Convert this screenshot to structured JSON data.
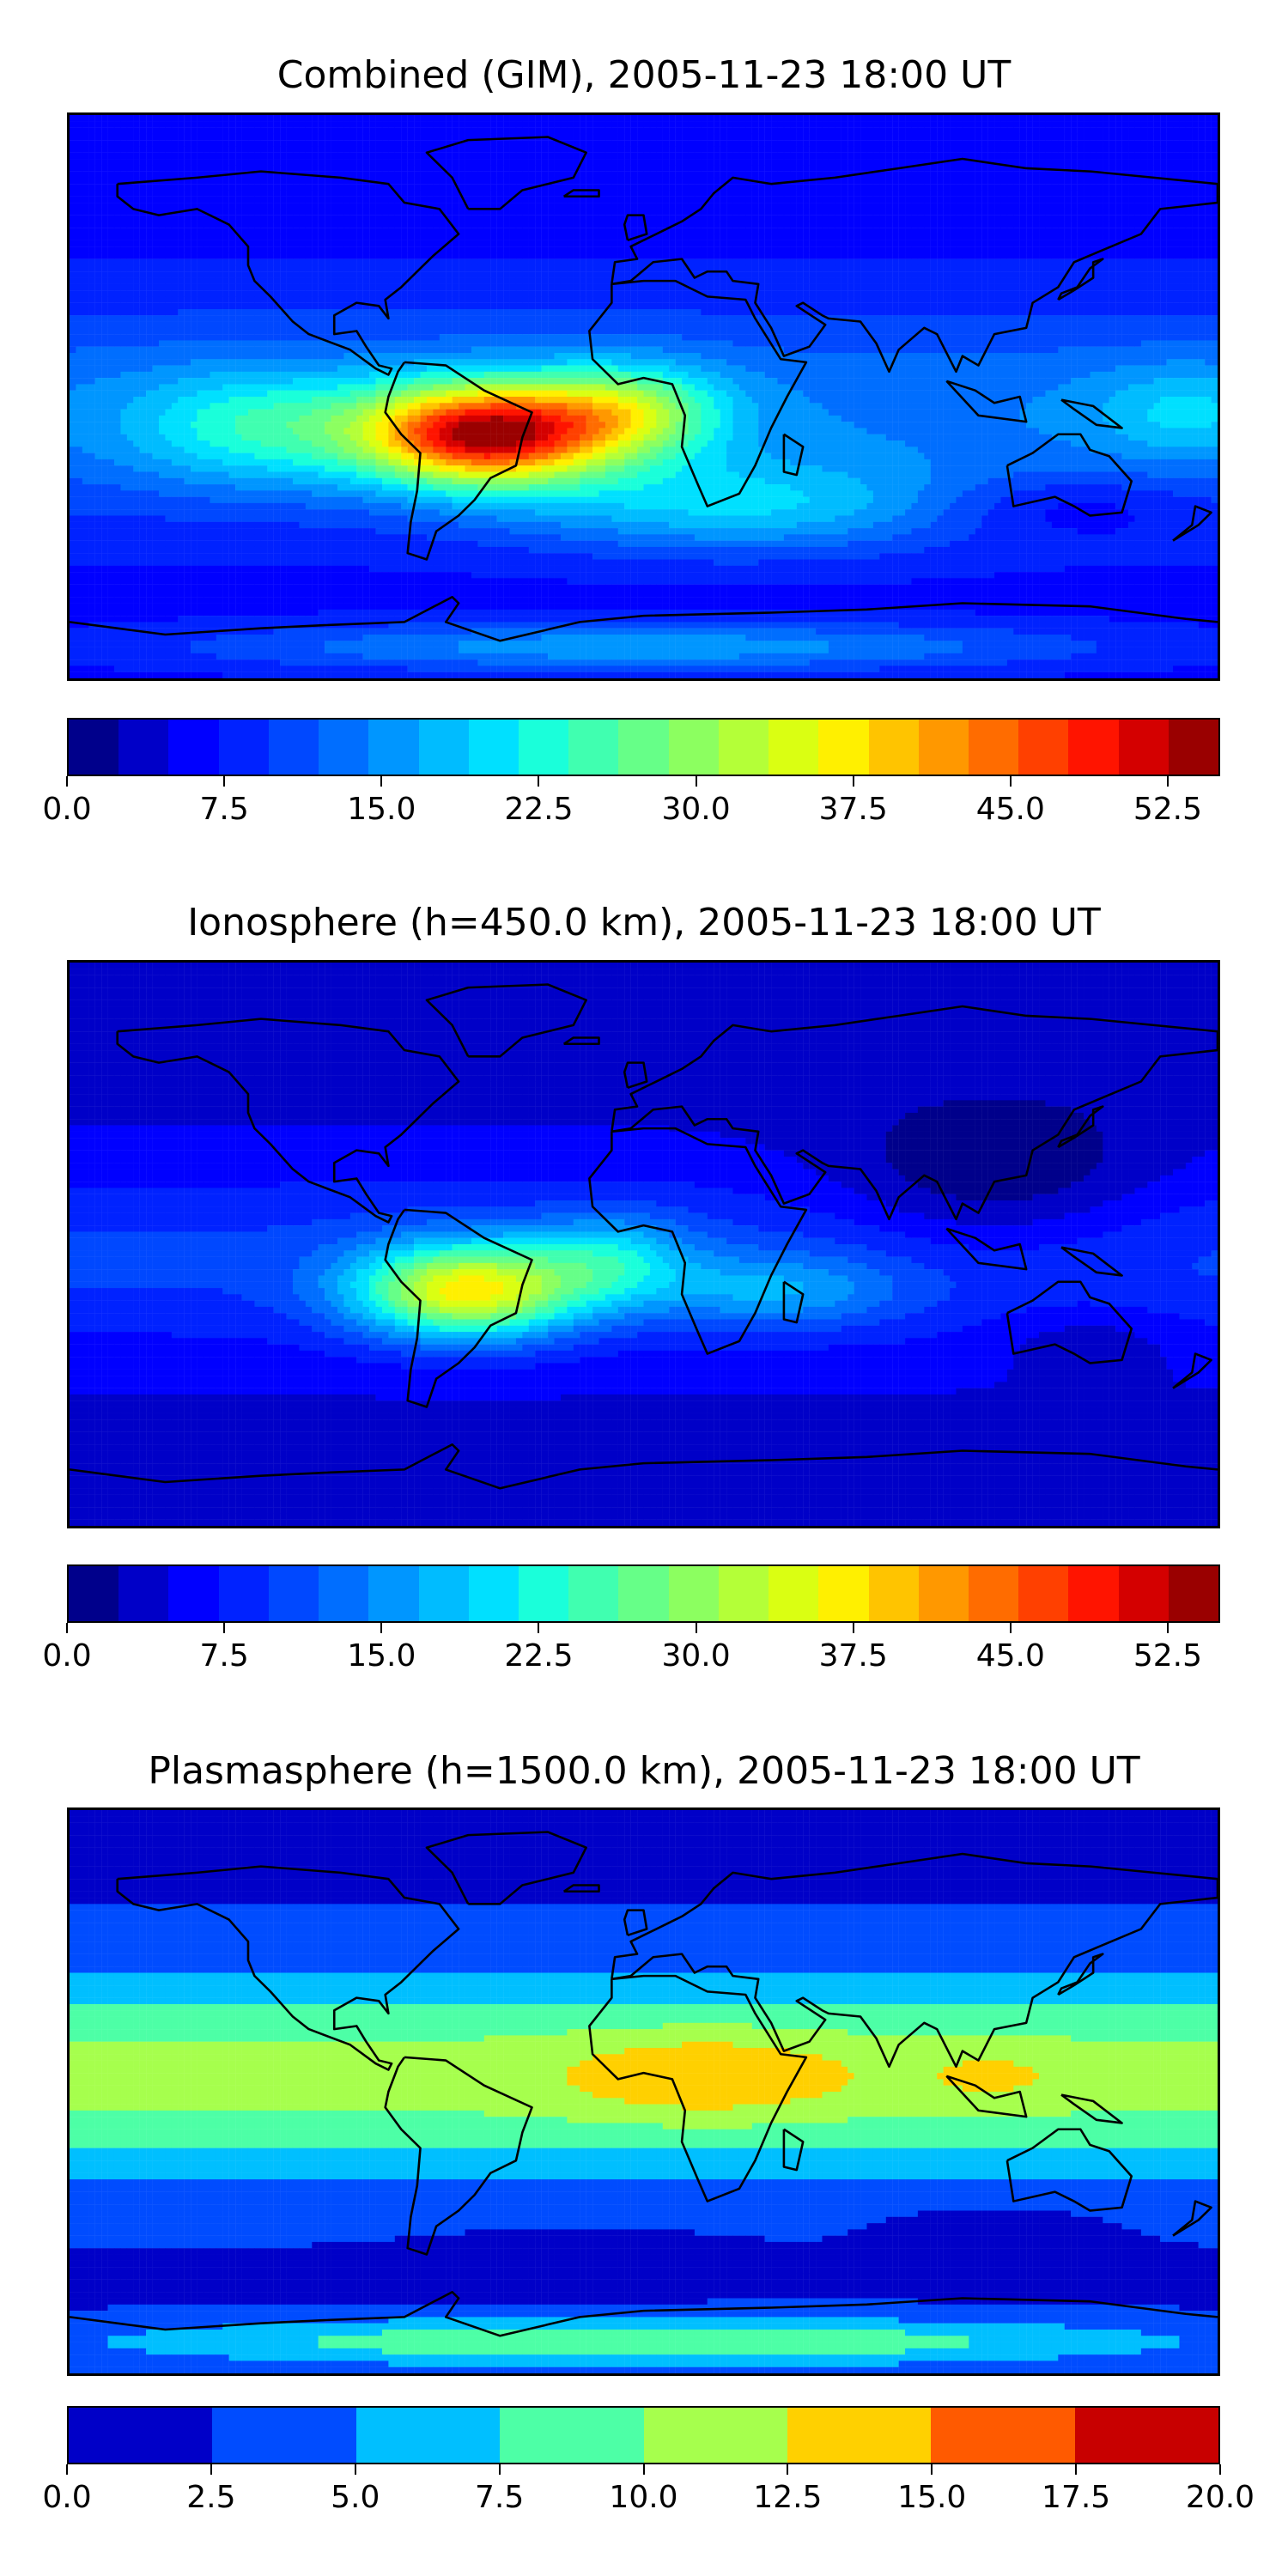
{
  "panels": [
    {
      "title": "Combined (GIM), 2005-11-23 18:00 UT",
      "field": "combined",
      "colorbar": {
        "min": 0,
        "max": 55,
        "colors": [
          "#00008b",
          "#0000c8",
          "#0000ff",
          "#0022ff",
          "#0048ff",
          "#006eff",
          "#0096ff",
          "#00bcff",
          "#00e0ff",
          "#1affda",
          "#40ffb0",
          "#66ff88",
          "#8cff60",
          "#b4ff38",
          "#daff12",
          "#fff000",
          "#ffc400",
          "#ff9800",
          "#ff6c00",
          "#ff4000",
          "#ff1400",
          "#d40000",
          "#9a0000"
        ],
        "ticks": [
          "0.0",
          "7.5",
          "15.0",
          "22.5",
          "30.0",
          "37.5",
          "45.0",
          "52.5"
        ],
        "tick_values": [
          0,
          7.5,
          15,
          22.5,
          30,
          37.5,
          45,
          52.5
        ]
      }
    },
    {
      "title": "Ionosphere  (h=450.0 km), 2005-11-23 18:00 UT",
      "field": "ionosphere",
      "colorbar": {
        "min": 0,
        "max": 55,
        "colors": [
          "#00008b",
          "#0000c8",
          "#0000ff",
          "#0022ff",
          "#0048ff",
          "#006eff",
          "#0096ff",
          "#00bcff",
          "#00e0ff",
          "#1affda",
          "#40ffb0",
          "#66ff88",
          "#8cff60",
          "#b4ff38",
          "#daff12",
          "#fff000",
          "#ffc400",
          "#ff9800",
          "#ff6c00",
          "#ff4000",
          "#ff1400",
          "#d40000",
          "#9a0000"
        ],
        "ticks": [
          "0.0",
          "7.5",
          "15.0",
          "22.5",
          "30.0",
          "37.5",
          "45.0",
          "52.5"
        ],
        "tick_values": [
          0,
          7.5,
          15,
          22.5,
          30,
          37.5,
          45,
          52.5
        ]
      }
    },
    {
      "title": "Plasmasphere (h=1500.0 km), 2005-11-23 18:00 UT",
      "field": "plasmasphere",
      "colorbar": {
        "min": 0,
        "max": 20,
        "colors": [
          "#0000c8",
          "#004cff",
          "#00bfff",
          "#4dffa6",
          "#a6ff4d",
          "#ffd000",
          "#ff5a00",
          "#c80000"
        ],
        "ticks": [
          "0.0",
          "2.5",
          "5.0",
          "7.5",
          "10.0",
          "12.5",
          "15.0",
          "17.5",
          "20.0"
        ],
        "tick_values": [
          0,
          2.5,
          5,
          7.5,
          10,
          12.5,
          15,
          17.5,
          20
        ]
      }
    }
  ]
}
